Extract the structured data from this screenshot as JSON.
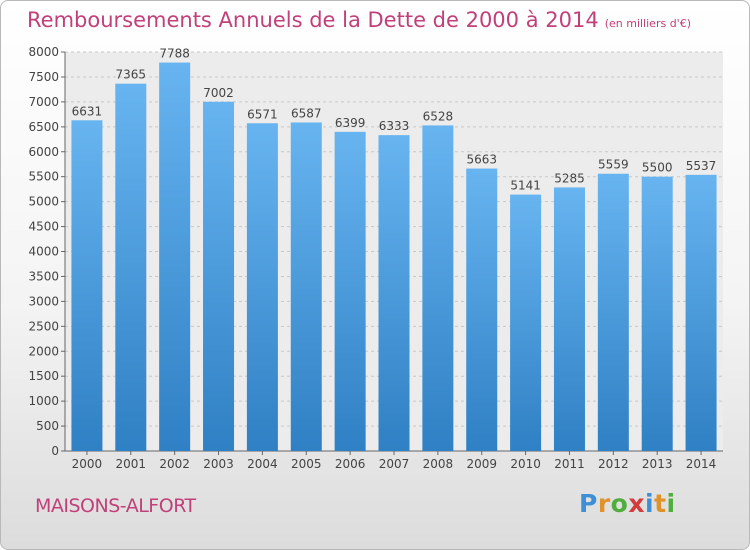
{
  "header": {
    "title": "Remboursements Annuels de la Dette de 2000 à 2014",
    "unit": "(en milliers d'€)"
  },
  "footer": {
    "city": "MAISONS-ALFORT"
  },
  "brand": {
    "letters": [
      "P",
      "r",
      "o",
      "x",
      "i",
      "t",
      "i"
    ],
    "colors": [
      "#3f8fd6",
      "#e0922b",
      "#4fae3c",
      "#d63b3b",
      "#3f8fd6",
      "#e0922b",
      "#4fae3c"
    ]
  },
  "chart_data": {
    "type": "bar",
    "title": "Remboursements Annuels de la Dette de 2000 à 2014",
    "subtitle": "(en milliers d'€)",
    "xlabel": "",
    "ylabel": "",
    "categories": [
      "2000",
      "2001",
      "2002",
      "2003",
      "2004",
      "2005",
      "2006",
      "2007",
      "2008",
      "2009",
      "2010",
      "2011",
      "2012",
      "2013",
      "2014"
    ],
    "values": [
      6631,
      7365,
      7788,
      7002,
      6571,
      6587,
      6399,
      6333,
      6528,
      5663,
      5141,
      5285,
      5559,
      5500,
      5537
    ],
    "ylim": [
      0,
      8000
    ],
    "ytick_step": 500,
    "grid": true,
    "colors": {
      "bar_top": "#67b4f0",
      "bar_bottom": "#2f80c4",
      "grid": "#c8c8c8"
    }
  }
}
